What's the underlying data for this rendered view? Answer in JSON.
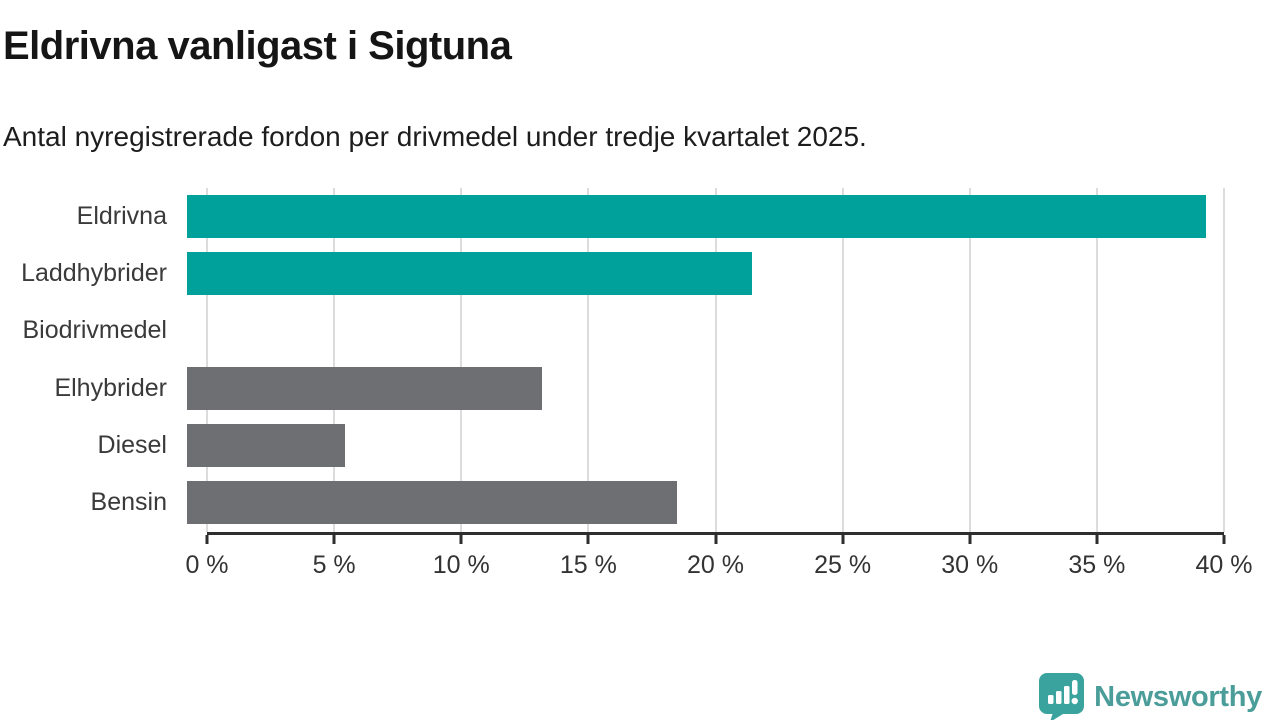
{
  "title": "Eldrivna vanligast i Sigtuna",
  "subtitle": "Antal nyregistrerade fordon per drivmedel under tredje kvartalet 2025.",
  "chart_data": {
    "type": "bar",
    "orientation": "horizontal",
    "title": "Eldrivna vanligast i Sigtuna",
    "subtitle": "Antal nyregistrerade fordon per drivmedel under tredje kvartalet 2025.",
    "categories": [
      "Eldrivna",
      "Laddhybrider",
      "Biodrivmedel",
      "Elhybrider",
      "Diesel",
      "Bensin"
    ],
    "values": [
      39.3,
      21.8,
      0,
      13.7,
      6.1,
      18.9
    ],
    "unit": "%",
    "bar_color_keys": [
      "highlight",
      "highlight",
      "default",
      "default",
      "default",
      "default"
    ],
    "colors": {
      "highlight": "#00a19a",
      "default": "#6e6f72",
      "gridline": "#dcdcdc",
      "axis": "#2e2e2e"
    },
    "xlim": [
      0,
      40
    ],
    "x_ticks": [
      0,
      5,
      10,
      15,
      20,
      25,
      30,
      35,
      40
    ],
    "x_tick_labels": [
      "0 %",
      "5 %",
      "10 %",
      "15 %",
      "20 %",
      "25 %",
      "30 %",
      "35 %",
      "40 %"
    ],
    "grid": true,
    "legend": false
  },
  "footer": {
    "brand": "Newsworthy",
    "brand_text_color": "#4a9d99",
    "brand_icon_color": "#3ba39e",
    "brand_icon": "speech-bubble-bar-chart-icon"
  }
}
